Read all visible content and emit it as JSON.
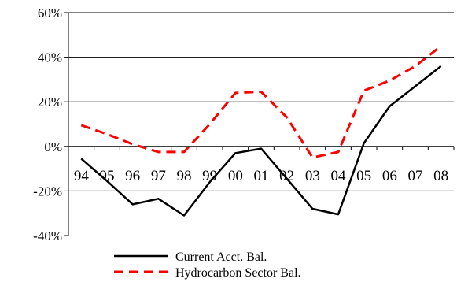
{
  "chart_data": {
    "type": "line",
    "title": "",
    "xlabel": "",
    "ylabel": "",
    "categories": [
      "94",
      "95",
      "96",
      "97",
      "98",
      "99",
      "00",
      "01",
      "02",
      "03",
      "04",
      "05",
      "06",
      "07",
      "08"
    ],
    "ylim": [
      -40,
      60
    ],
    "yticks": [
      -40,
      -20,
      0,
      20,
      40,
      60
    ],
    "ytick_labels": [
      "-40%",
      "-20%",
      "0%",
      "20%",
      "40%",
      "60%"
    ],
    "grid": "horizontal",
    "legend_position": "bottom",
    "series": [
      {
        "name": "Current Acct. Bal.",
        "color": "#000000",
        "style": "solid",
        "values": [
          -5.5,
          -15.5,
          -26,
          -23.5,
          -31,
          -16,
          -3,
          -1,
          -14.5,
          -28,
          -30.5,
          1.5,
          18,
          27,
          36
        ]
      },
      {
        "name": "Hydrocarbon Sector Bal.",
        "color": "#ff0000",
        "style": "dashed",
        "values": [
          9.5,
          5.5,
          1,
          -2.5,
          -2.5,
          10,
          24,
          24.5,
          13,
          -5,
          -2.5,
          25,
          29.5,
          36,
          45
        ]
      }
    ]
  }
}
